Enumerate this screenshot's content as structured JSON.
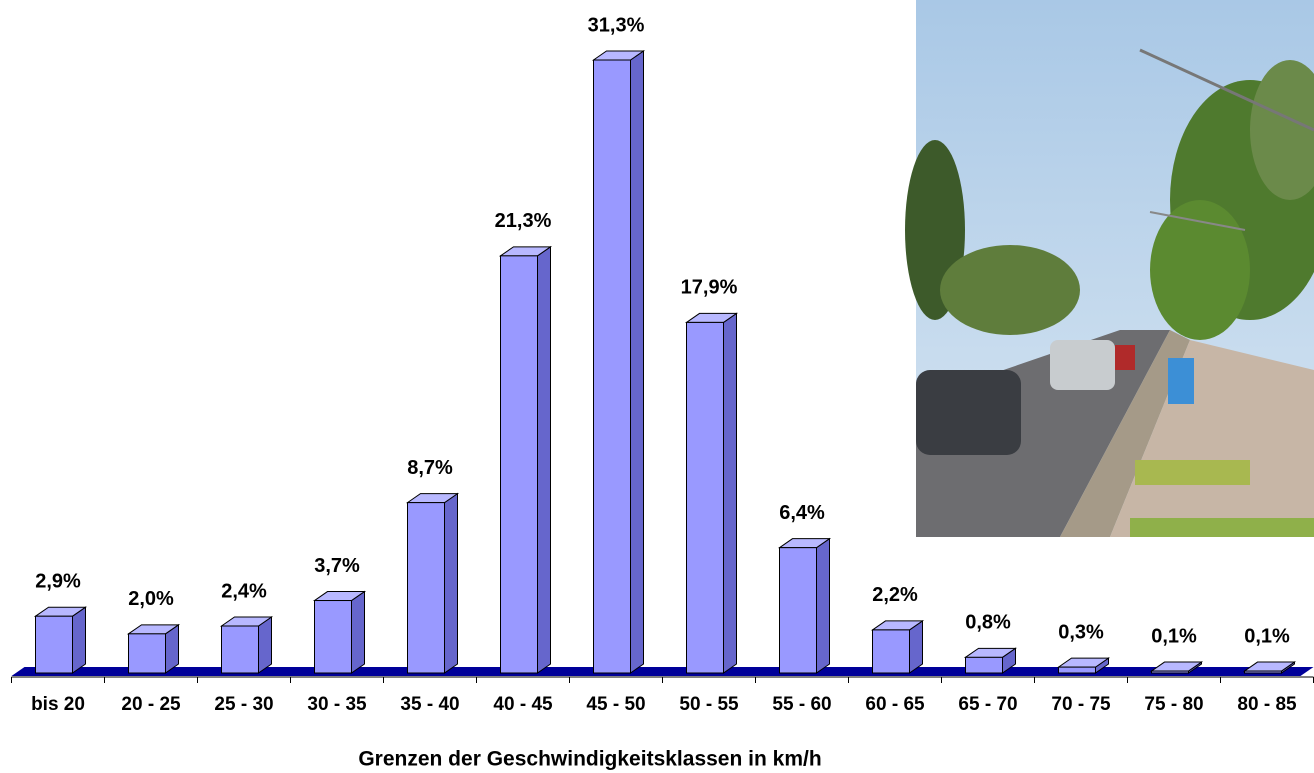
{
  "chart_data": {
    "type": "bar3d",
    "x_label": "Grenzen der Geschwindigkeitsklassen in km/h",
    "categories": [
      "bis 20",
      "20 - 25",
      "25 - 30",
      "30 - 35",
      "35 - 40",
      "40 - 45",
      "45 - 50",
      "50 - 55",
      "55 - 60",
      "60 - 65",
      "65 - 70",
      "70 - 75",
      "75 - 80",
      "80 - 85"
    ],
    "values": [
      2.9,
      2.0,
      2.4,
      3.7,
      8.7,
      21.3,
      31.3,
      17.9,
      6.4,
      2.2,
      0.8,
      0.3,
      0.1,
      0.1
    ],
    "value_labels": [
      "2,9%",
      "2,0%",
      "2,4%",
      "3,7%",
      "8,7%",
      "21,3%",
      "31,3%",
      "17,9%",
      "6,4%",
      "2,2%",
      "0,8%",
      "0,3%",
      "0,1%",
      "0,1%"
    ],
    "color": "#9999ff",
    "side_color": "#6666cc",
    "top_color": "#b8b8ff",
    "floor_color": "#000099"
  }
}
